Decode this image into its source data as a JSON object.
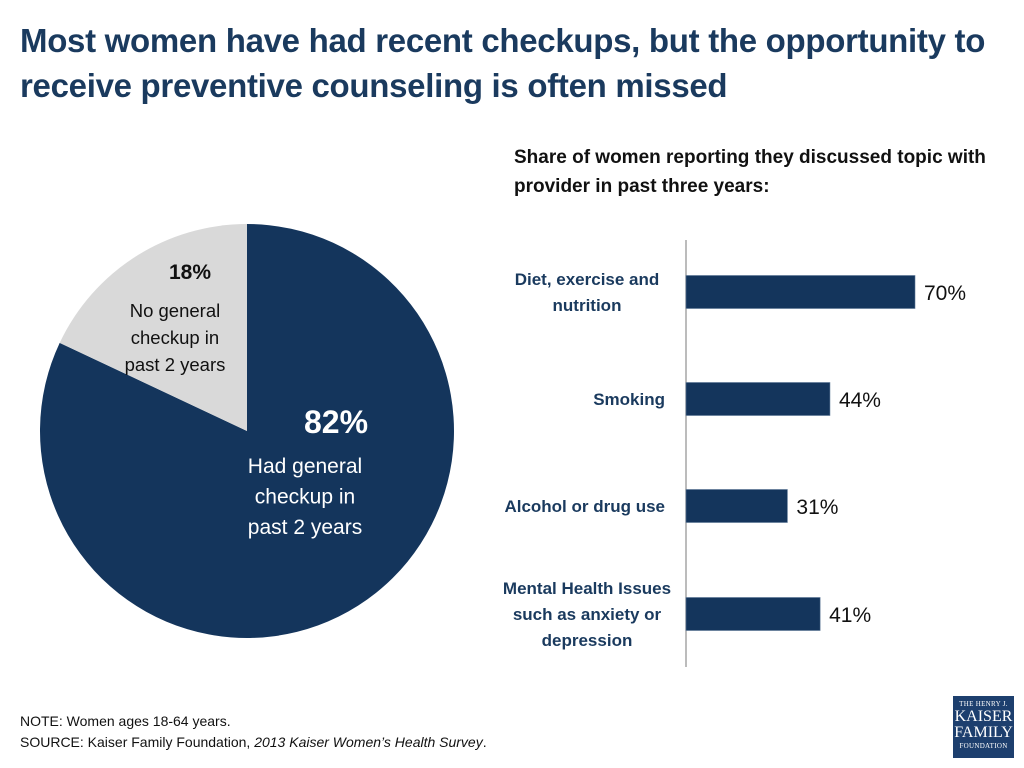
{
  "title": "Most women have had recent checkups, but the opportunity to receive preventive counseling is often missed",
  "colors": {
    "navy": "#14355c",
    "light_gray": "#d9d9d9",
    "title_blue": "#1a3a5e",
    "axis_gray": "#a6a6a6"
  },
  "chart_data": [
    {
      "type": "pie",
      "title": "",
      "slices": [
        {
          "label": "Had general checkup in past 2 years",
          "value": 82,
          "value_label": "82%",
          "label_lines": [
            "Had general",
            "checkup in",
            "past 2 years"
          ],
          "color": "#14355c"
        },
        {
          "label": "No general checkup in past 2 years",
          "value": 18,
          "value_label": "18%",
          "label_lines": [
            "No general",
            "checkup in",
            "past 2 years"
          ],
          "color": "#d9d9d9"
        }
      ]
    },
    {
      "type": "bar",
      "orientation": "horizontal",
      "title": "Share of women reporting they discussed topic with provider in past three years:",
      "categories": [
        "Diet, exercise and nutrition",
        "Smoking",
        "Alcohol or drug use",
        "Mental Health Issues such as anxiety or depression"
      ],
      "category_lines": [
        [
          "Diet, exercise and",
          "nutrition"
        ],
        [
          "Smoking"
        ],
        [
          "Alcohol or drug use"
        ],
        [
          "Mental Health Issues",
          "such as anxiety or",
          "depression"
        ]
      ],
      "values": [
        70,
        44,
        31,
        41
      ],
      "value_labels": [
        "70%",
        "44%",
        "31%",
        "41%"
      ],
      "xlabel": "",
      "ylabel": "",
      "xlim": [
        0,
        100
      ],
      "grid": false,
      "legend": "none"
    }
  ],
  "footer": {
    "note": "NOTE: Women ages 18-64 years.",
    "source_prefix": "SOURCE:  Kaiser Family Foundation, ",
    "source_italic": "2013 Kaiser Women’s Health Survey",
    "source_suffix": "."
  },
  "logo": {
    "line1": "THE HENRY J.",
    "line2": "KAISER",
    "line3": "FAMILY",
    "line4": "FOUNDATION"
  }
}
